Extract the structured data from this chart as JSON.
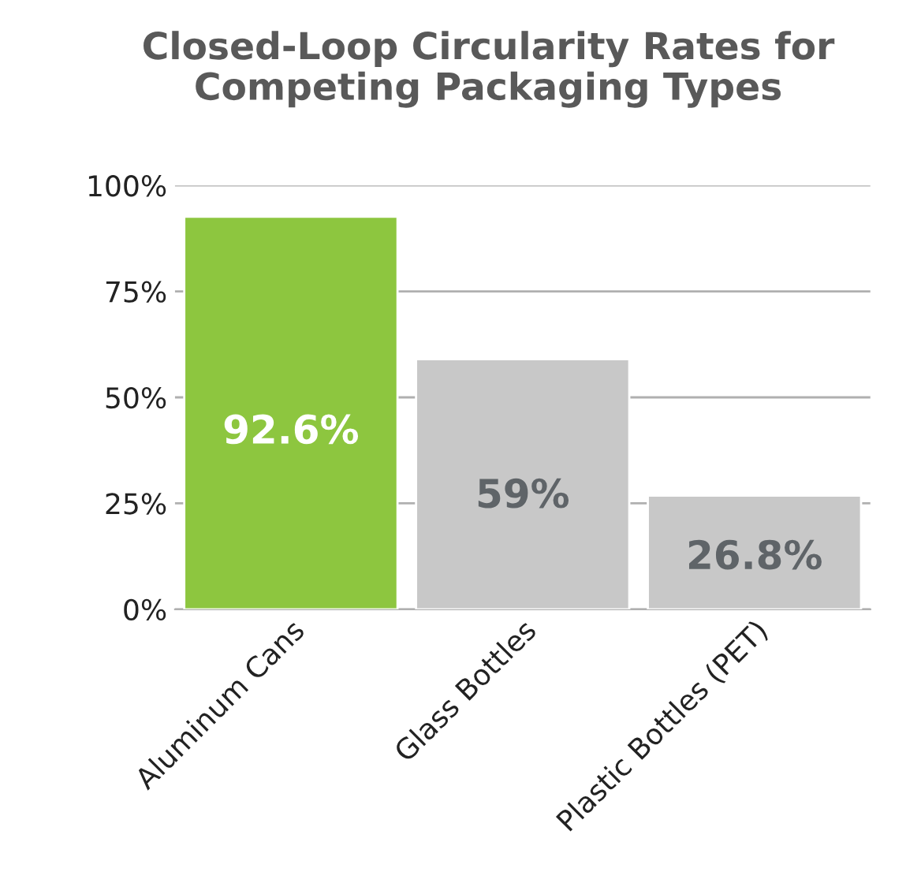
{
  "chart_data": {
    "type": "bar",
    "title": "Closed-Loop Circularity Rates for\nCompeting Packaging Types",
    "categories": [
      "Aluminum Cans",
      "Glass Bottles",
      "Plastic Bottles (PET)"
    ],
    "values": [
      92.6,
      59,
      26.8
    ],
    "colors": [
      "#8dc63f",
      "#c8c8c8",
      "#c8c8c8"
    ],
    "value_labels": [
      "92.6%",
      "59%",
      "26.8%"
    ],
    "ylim": [
      0,
      100
    ],
    "yticks": [
      {
        "value": 0,
        "label": "0%"
      },
      {
        "value": 25,
        "label": "25%"
      },
      {
        "value": 50,
        "label": "50%"
      },
      {
        "value": 75,
        "label": "75%"
      },
      {
        "value": 100,
        "label": "100%"
      }
    ],
    "grid": "y",
    "legend": false
  }
}
